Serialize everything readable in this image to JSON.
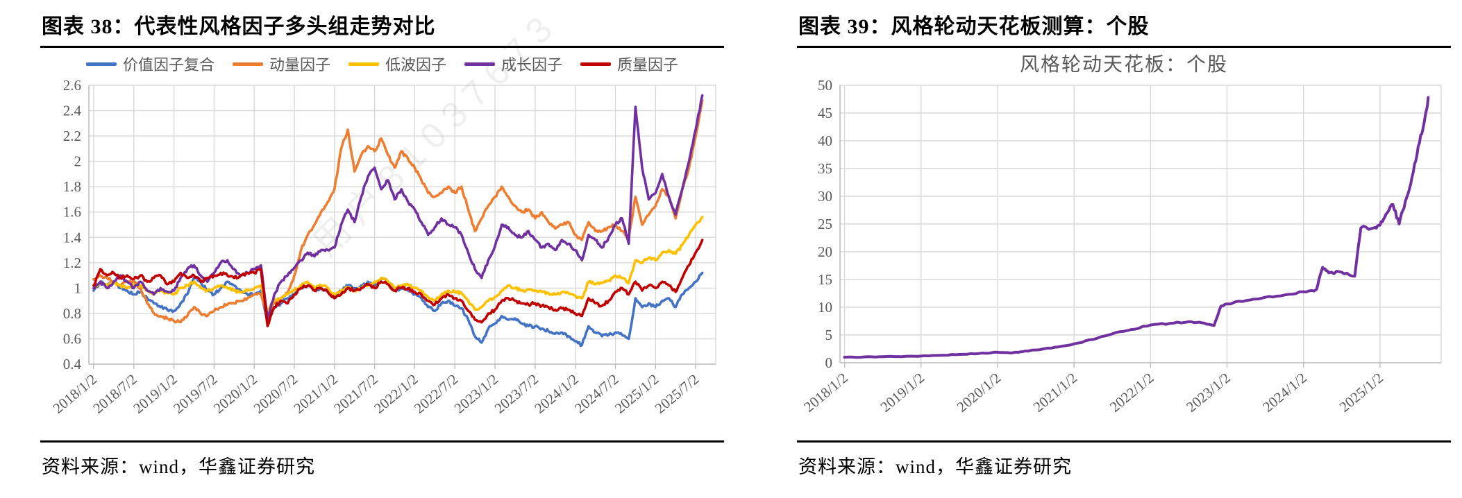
{
  "page": {
    "watermark": "用户81037673",
    "colors": {
      "grid": "#D9D9D9",
      "axis": "#BFBFBF",
      "tick_text": "#595959"
    }
  },
  "figures": [
    {
      "header": "图表 38：代表性风格因子多头组走势对比",
      "source": "资料来源：wind，华鑫证券研究"
    },
    {
      "header": "图表 39：风格轮动天花板测算：个股",
      "source": "资料来源：wind，华鑫证券研究"
    }
  ],
  "chart_data": [
    {
      "type": "line",
      "title": "",
      "legend_position": "top",
      "grid": true,
      "x_range": [
        2017.94,
        2025.75
      ],
      "ylim": [
        0.4,
        2.6
      ],
      "y_ticks": [
        {
          "v": 0.4,
          "label": "0.4"
        },
        {
          "v": 0.6,
          "label": "0.6"
        },
        {
          "v": 0.8,
          "label": "0.8"
        },
        {
          "v": 1.0,
          "label": "1"
        },
        {
          "v": 1.2,
          "label": "1.2"
        },
        {
          "v": 1.4,
          "label": "1.4"
        },
        {
          "v": 1.6,
          "label": "1.6"
        },
        {
          "v": 1.8,
          "label": "1.8"
        },
        {
          "v": 2.0,
          "label": "2"
        },
        {
          "v": 2.2,
          "label": "2.2"
        },
        {
          "v": 2.4,
          "label": "2.4"
        },
        {
          "v": 2.6,
          "label": "2.6"
        }
      ],
      "x_ticks": [
        {
          "v": 2018.0,
          "label": "2018/1/2"
        },
        {
          "v": 2018.5,
          "label": "2018/7/2"
        },
        {
          "v": 2019.0,
          "label": "2019/1/2"
        },
        {
          "v": 2019.5,
          "label": "2019/7/2"
        },
        {
          "v": 2020.0,
          "label": "2020/1/2"
        },
        {
          "v": 2020.5,
          "label": "2020/7/2"
        },
        {
          "v": 2021.0,
          "label": "2021/1/2"
        },
        {
          "v": 2021.5,
          "label": "2021/7/2"
        },
        {
          "v": 2022.0,
          "label": "2022/1/2"
        },
        {
          "v": 2022.5,
          "label": "2022/7/2"
        },
        {
          "v": 2023.0,
          "label": "2023/1/2"
        },
        {
          "v": 2023.5,
          "label": "2023/7/2"
        },
        {
          "v": 2024.0,
          "label": "2024/1/2"
        },
        {
          "v": 2024.5,
          "label": "2024/7/2"
        },
        {
          "v": 2025.0,
          "label": "2025/1/2"
        },
        {
          "v": 2025.5,
          "label": "2025/7/2"
        }
      ],
      "series": [
        {
          "name": "价值因子复合",
          "color": "#4472C4",
          "start_year": 2018,
          "monthly_values": [
            0.98,
            1.05,
            1.02,
            1.05,
            1.0,
            0.98,
            0.95,
            0.97,
            0.92,
            0.88,
            0.85,
            0.83,
            0.82,
            0.88,
            0.95,
            1.08,
            1.05,
            0.98,
            0.95,
            1.0,
            1.05,
            1.02,
            0.98,
            0.95,
            0.95,
            0.98,
            0.73,
            0.85,
            0.88,
            0.92,
            0.95,
            1.0,
            1.02,
            0.98,
            1.0,
            0.97,
            0.92,
            0.98,
            1.02,
            1.0,
            1.02,
            1.05,
            1.02,
            1.08,
            1.05,
            0.98,
            1.0,
            0.98,
            0.95,
            0.92,
            0.85,
            0.82,
            0.88,
            0.9,
            0.86,
            0.84,
            0.75,
            0.62,
            0.57,
            0.68,
            0.72,
            0.78,
            0.75,
            0.76,
            0.72,
            0.7,
            0.7,
            0.68,
            0.66,
            0.64,
            0.65,
            0.62,
            0.58,
            0.55,
            0.7,
            0.65,
            0.62,
            0.63,
            0.65,
            0.63,
            0.6,
            0.92,
            0.85,
            0.88,
            0.85,
            0.9,
            0.92,
            0.85,
            0.95,
            1.0,
            1.05,
            1.12
          ]
        },
        {
          "name": "动量因子",
          "color": "#ED7D31",
          "start_year": 2018,
          "monthly_values": [
            1.07,
            1.1,
            1.08,
            1.05,
            1.02,
            1.05,
            1.05,
            1.0,
            0.88,
            0.8,
            0.78,
            0.76,
            0.74,
            0.73,
            0.78,
            0.85,
            0.8,
            0.78,
            0.82,
            0.85,
            0.87,
            0.88,
            0.9,
            0.92,
            0.95,
            0.95,
            0.8,
            0.88,
            0.92,
            0.96,
            1.1,
            1.3,
            1.42,
            1.5,
            1.6,
            1.68,
            1.78,
            2.1,
            2.25,
            1.92,
            2.05,
            2.12,
            2.08,
            2.18,
            2.05,
            1.95,
            2.08,
            2.02,
            1.95,
            1.85,
            1.75,
            1.72,
            1.75,
            1.8,
            1.75,
            1.8,
            1.62,
            1.45,
            1.55,
            1.65,
            1.72,
            1.8,
            1.72,
            1.65,
            1.6,
            1.62,
            1.55,
            1.6,
            1.52,
            1.47,
            1.5,
            1.52,
            1.42,
            1.38,
            1.52,
            1.45,
            1.45,
            1.48,
            1.5,
            1.45,
            1.4,
            1.72,
            1.5,
            1.58,
            1.65,
            1.78,
            1.72,
            1.55,
            1.78,
            1.95,
            2.2,
            2.48
          ]
        },
        {
          "name": "低波因子",
          "color": "#FFC000",
          "start_year": 2018,
          "monthly_values": [
            1.0,
            1.05,
            1.02,
            1.04,
            1.02,
            1.0,
            1.03,
            1.02,
            0.98,
            0.96,
            0.98,
            0.96,
            0.95,
            1.0,
            1.02,
            1.05,
            1.0,
            0.98,
            1.0,
            1.02,
            1.0,
            0.98,
            0.97,
            0.98,
            1.0,
            1.02,
            0.82,
            0.9,
            0.92,
            0.95,
            0.98,
            1.02,
            1.05,
            1.0,
            1.02,
            1.0,
            0.95,
            0.98,
            1.0,
            0.98,
            1.0,
            1.02,
            1.05,
            1.08,
            1.05,
            1.0,
            1.02,
            1.03,
            1.0,
            0.98,
            0.93,
            0.9,
            0.95,
            0.98,
            0.97,
            0.96,
            0.9,
            0.83,
            0.85,
            0.9,
            0.93,
            0.98,
            1.02,
            1.0,
            0.98,
            0.99,
            0.98,
            0.97,
            0.96,
            0.95,
            0.97,
            0.96,
            0.94,
            0.92,
            1.05,
            1.03,
            1.04,
            1.06,
            1.1,
            1.08,
            1.04,
            1.22,
            1.2,
            1.24,
            1.22,
            1.28,
            1.3,
            1.27,
            1.34,
            1.42,
            1.5,
            1.56
          ]
        },
        {
          "name": "成长因子",
          "color": "#7030A0",
          "start_year": 2018,
          "monthly_values": [
            1.0,
            1.05,
            1.0,
            1.05,
            1.1,
            1.05,
            1.0,
            1.05,
            0.98,
            0.95,
            1.0,
            0.97,
            0.98,
            1.08,
            1.15,
            1.18,
            1.1,
            1.05,
            1.12,
            1.2,
            1.22,
            1.15,
            1.1,
            1.12,
            1.15,
            1.18,
            0.76,
            0.95,
            1.05,
            1.1,
            1.16,
            1.22,
            1.28,
            1.25,
            1.3,
            1.3,
            1.32,
            1.5,
            1.62,
            1.52,
            1.72,
            1.88,
            1.95,
            1.78,
            1.85,
            1.7,
            1.78,
            1.68,
            1.62,
            1.52,
            1.42,
            1.48,
            1.55,
            1.5,
            1.48,
            1.42,
            1.28,
            1.15,
            1.08,
            1.22,
            1.33,
            1.5,
            1.48,
            1.42,
            1.4,
            1.45,
            1.38,
            1.32,
            1.35,
            1.3,
            1.38,
            1.35,
            1.3,
            1.22,
            1.42,
            1.38,
            1.32,
            1.4,
            1.5,
            1.55,
            1.35,
            2.43,
            1.95,
            1.7,
            1.75,
            1.9,
            1.72,
            1.58,
            1.78,
            2.0,
            2.25,
            2.52
          ]
        },
        {
          "name": "质量因子",
          "color": "#C00000",
          "start_year": 2018,
          "monthly_values": [
            1.02,
            1.15,
            1.1,
            1.12,
            1.08,
            1.1,
            1.07,
            1.1,
            1.05,
            1.08,
            1.1,
            1.03,
            1.05,
            1.12,
            1.08,
            1.1,
            1.05,
            1.08,
            1.1,
            1.12,
            1.1,
            1.08,
            1.1,
            1.12,
            1.12,
            1.15,
            0.7,
            0.85,
            0.9,
            0.88,
            0.95,
            1.0,
            1.02,
            0.98,
            1.0,
            0.97,
            0.92,
            0.95,
            1.0,
            0.98,
            1.0,
            1.03,
            1.0,
            1.05,
            1.03,
            0.98,
            1.0,
            1.0,
            0.97,
            0.95,
            0.9,
            0.87,
            0.92,
            0.95,
            0.92,
            0.9,
            0.82,
            0.75,
            0.73,
            0.8,
            0.83,
            0.9,
            0.92,
            0.9,
            0.88,
            0.87,
            0.88,
            0.86,
            0.85,
            0.83,
            0.84,
            0.83,
            0.8,
            0.78,
            0.92,
            0.88,
            0.86,
            0.9,
            0.97,
            1.0,
            0.95,
            1.05,
            0.98,
            1.02,
            1.0,
            1.05,
            1.02,
            0.97,
            1.08,
            1.18,
            1.28,
            1.38
          ]
        }
      ]
    },
    {
      "type": "line",
      "title": "风格轮动天花板：个股",
      "legend_position": "none",
      "grid": true,
      "x_range": [
        2017.94,
        2025.8
      ],
      "ylim": [
        0,
        50
      ],
      "y_ticks": [
        {
          "v": 0,
          "label": "0"
        },
        {
          "v": 5,
          "label": "5"
        },
        {
          "v": 10,
          "label": "10"
        },
        {
          "v": 15,
          "label": "15"
        },
        {
          "v": 20,
          "label": "20"
        },
        {
          "v": 25,
          "label": "25"
        },
        {
          "v": 30,
          "label": "30"
        },
        {
          "v": 35,
          "label": "35"
        },
        {
          "v": 40,
          "label": "40"
        },
        {
          "v": 45,
          "label": "45"
        },
        {
          "v": 50,
          "label": "50"
        }
      ],
      "x_ticks": [
        {
          "v": 2018,
          "label": "2018/1/2"
        },
        {
          "v": 2019,
          "label": "2019/1/2"
        },
        {
          "v": 2020,
          "label": "2020/1/2"
        },
        {
          "v": 2021,
          "label": "2021/1/2"
        },
        {
          "v": 2022,
          "label": "2022/1/2"
        },
        {
          "v": 2023,
          "label": "2023/1/2"
        },
        {
          "v": 2024,
          "label": "2024/1/2"
        },
        {
          "v": 2025,
          "label": "2025/1/2"
        }
      ],
      "series": [
        {
          "name": "个股",
          "color": "#7030A0",
          "points": [
            [
              2018.0,
              1.0
            ],
            [
              2018.25,
              1.05
            ],
            [
              2018.5,
              1.1
            ],
            [
              2018.75,
              1.1
            ],
            [
              2019.0,
              1.2
            ],
            [
              2019.25,
              1.35
            ],
            [
              2019.5,
              1.5
            ],
            [
              2019.75,
              1.65
            ],
            [
              2020.0,
              1.9
            ],
            [
              2020.17,
              1.75
            ],
            [
              2020.33,
              2.0
            ],
            [
              2020.5,
              2.3
            ],
            [
              2020.75,
              2.8
            ],
            [
              2021.0,
              3.4
            ],
            [
              2021.25,
              4.2
            ],
            [
              2021.5,
              5.2
            ],
            [
              2021.75,
              6.0
            ],
            [
              2022.0,
              6.8
            ],
            [
              2022.25,
              7.1
            ],
            [
              2022.5,
              7.4
            ],
            [
              2022.67,
              7.2
            ],
            [
              2022.83,
              6.7
            ],
            [
              2022.92,
              10.2
            ],
            [
              2023.0,
              10.6
            ],
            [
              2023.25,
              11.2
            ],
            [
              2023.5,
              11.8
            ],
            [
              2023.75,
              12.2
            ],
            [
              2024.0,
              12.8
            ],
            [
              2024.17,
              13.2
            ],
            [
              2024.25,
              17.2
            ],
            [
              2024.33,
              16.2
            ],
            [
              2024.5,
              16.3
            ],
            [
              2024.67,
              15.6
            ],
            [
              2024.75,
              24.3
            ],
            [
              2024.92,
              24.3
            ],
            [
              2025.0,
              24.8
            ],
            [
              2025.08,
              26.8
            ],
            [
              2025.17,
              28.5
            ],
            [
              2025.25,
              25.0
            ],
            [
              2025.33,
              29.0
            ],
            [
              2025.42,
              33.5
            ],
            [
              2025.5,
              39.0
            ],
            [
              2025.58,
              43.5
            ],
            [
              2025.63,
              47.8
            ]
          ]
        }
      ]
    }
  ]
}
